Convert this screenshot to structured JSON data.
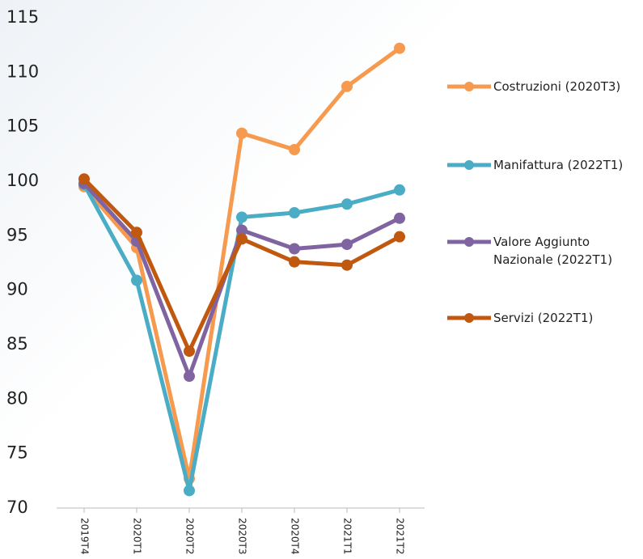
{
  "chart_data": {
    "type": "line",
    "categories": [
      "2019T4",
      "2020T1",
      "2020T2",
      "2020T3",
      "2020T4",
      "2021T1",
      "2021T2"
    ],
    "series": [
      {
        "name": "Costruzioni (2020T3)",
        "color": "#f59a4f",
        "values": [
          99.5,
          93.9,
          72.7,
          104.4,
          102.9,
          108.7,
          112.2
        ]
      },
      {
        "name": "Manifattura (2022T1)",
        "color": "#4bacc6",
        "values": [
          99.7,
          90.9,
          71.6,
          96.7,
          97.1,
          97.9,
          99.2
        ]
      },
      {
        "name": "Valore Aggiunto Nazionale (2022T1)",
        "color": "#8064a2",
        "values": [
          99.8,
          94.5,
          82.1,
          95.5,
          93.8,
          94.2,
          96.6
        ]
      },
      {
        "name": "Servizi (2022T1)",
        "color": "#c0580f",
        "values": [
          100.2,
          95.3,
          84.4,
          94.7,
          92.6,
          92.3,
          94.9
        ]
      }
    ],
    "ylim": [
      70,
      115
    ],
    "yticks": [
      70,
      75,
      80,
      85,
      90,
      95,
      100,
      105,
      110,
      115
    ],
    "legend": "right"
  }
}
